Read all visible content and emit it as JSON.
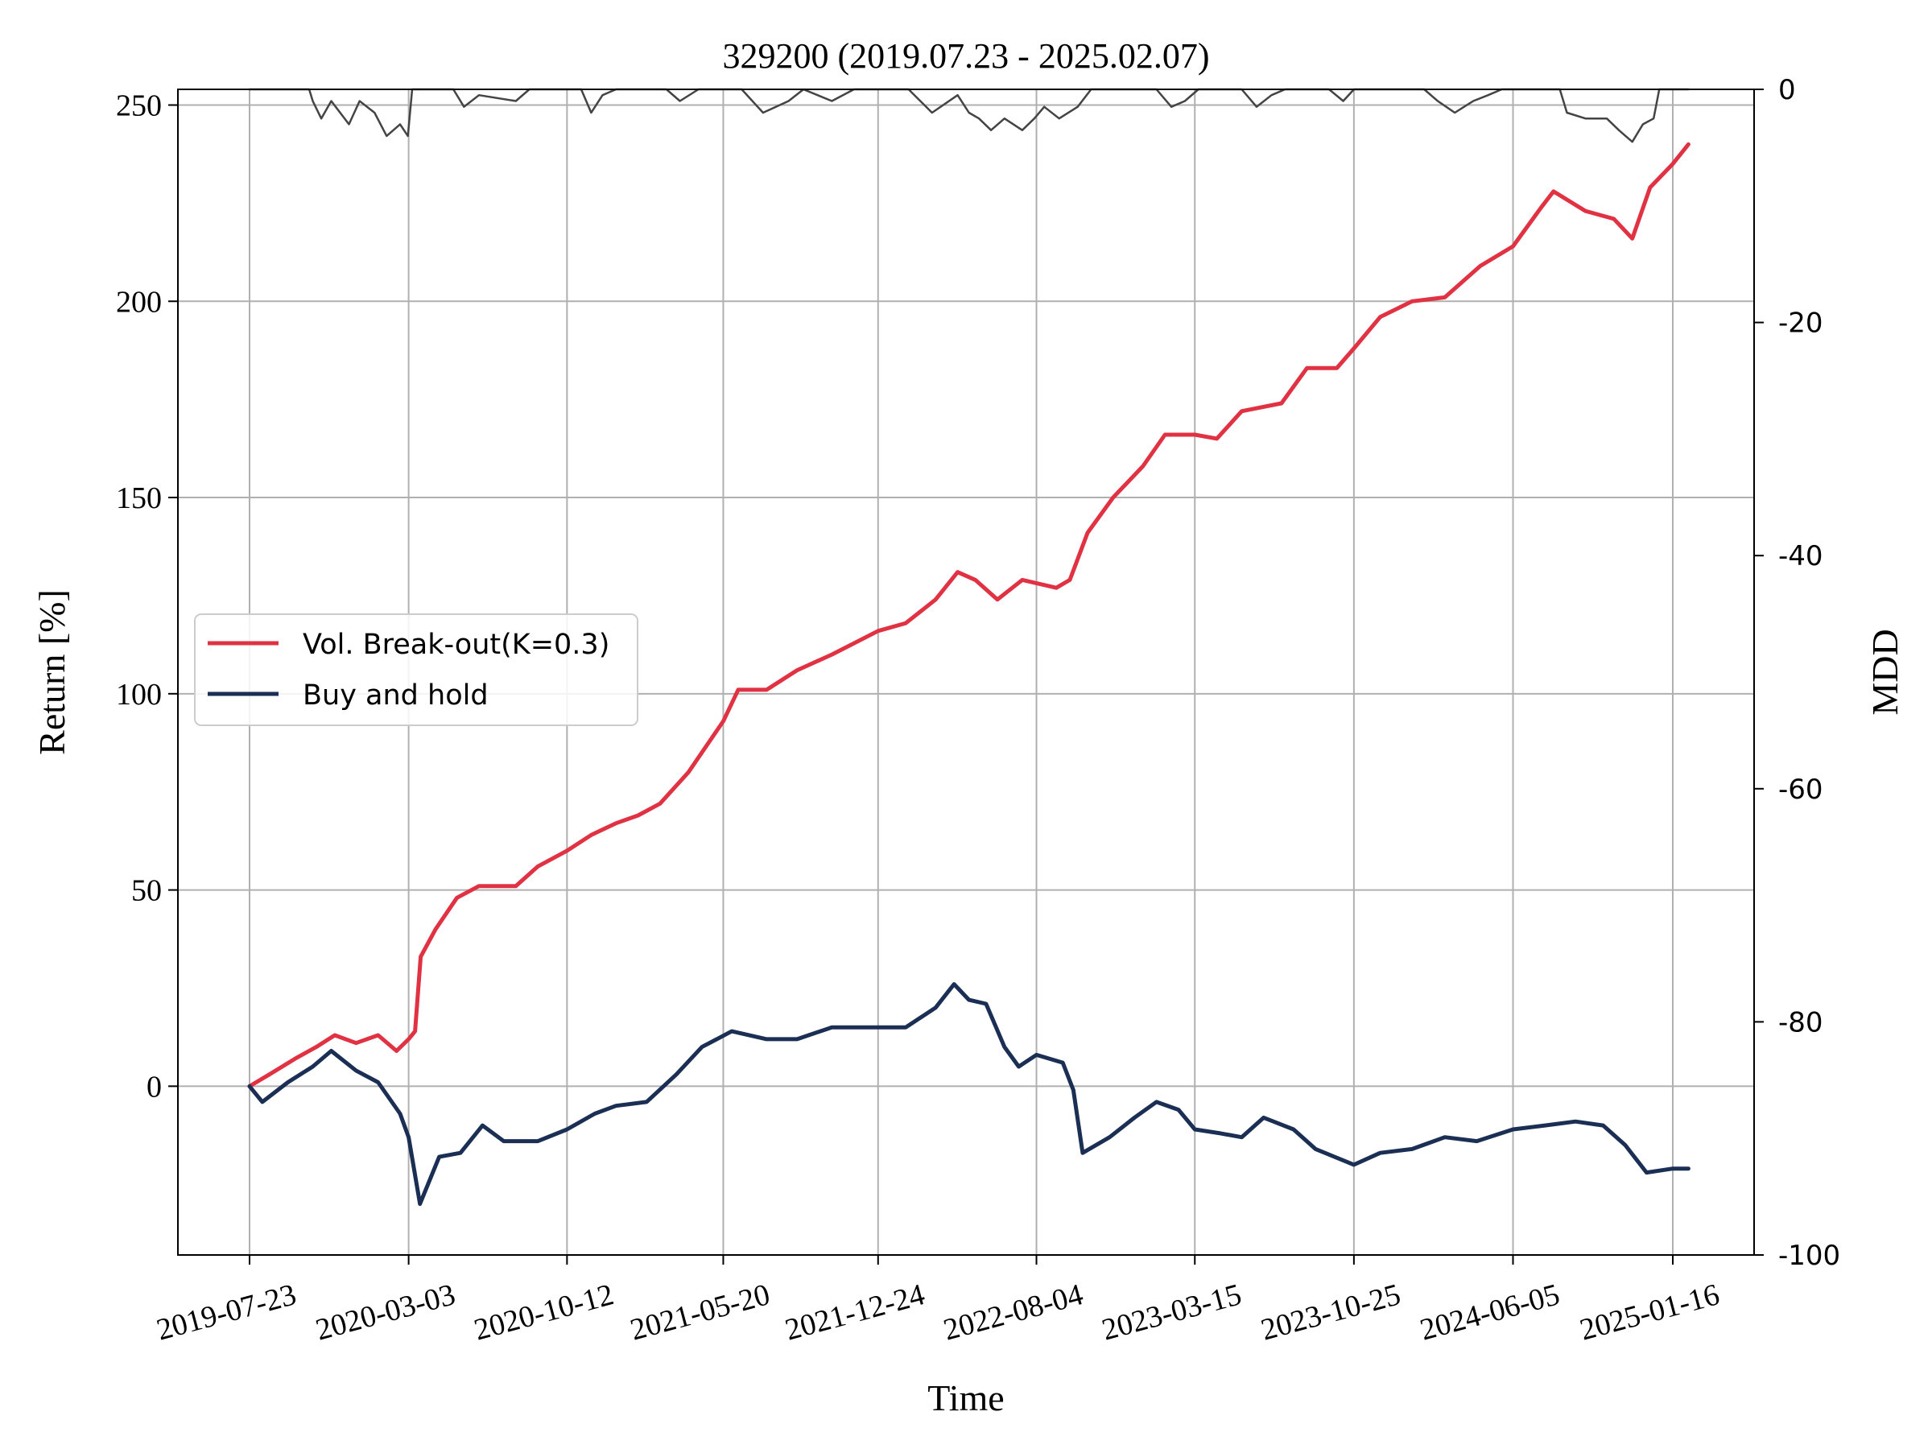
{
  "chart_data": {
    "type": "line",
    "title": "329200 (2019.07.23 - 2025.02.07)",
    "xlabel": "Time",
    "ylabel": "Return [%]",
    "ylabel_right": "MDD",
    "ylim": [
      -43,
      254
    ],
    "ylim_right": [
      -100,
      0
    ],
    "yticks_left": [
      "0",
      "50",
      "100",
      "150",
      "200",
      "250"
    ],
    "yticks_right": [
      "0",
      "-20",
      "-40",
      "-60",
      "-80",
      "-100"
    ],
    "xticks": [
      "2019-07-23",
      "2020-03-03",
      "2020-10-12",
      "2021-05-20",
      "2021-12-24",
      "2022-08-04",
      "2023-03-15",
      "2023-10-25",
      "2024-06-05",
      "2025-01-16"
    ],
    "grid": true,
    "legend_position": "center-left",
    "series": [
      {
        "name": "Vol. Break-out(K=0.3)",
        "color": "#e03242",
        "axis": "left",
        "points": [
          [
            "2019-07-23",
            0
          ],
          [
            "2019-08-20",
            3
          ],
          [
            "2019-09-25",
            7
          ],
          [
            "2019-10-25",
            10
          ],
          [
            "2019-11-20",
            13
          ],
          [
            "2019-12-20",
            11
          ],
          [
            "2020-01-20",
            13
          ],
          [
            "2020-02-15",
            9
          ],
          [
            "2020-03-03",
            12
          ],
          [
            "2020-03-12",
            14
          ],
          [
            "2020-03-20",
            33
          ],
          [
            "2020-04-10",
            40
          ],
          [
            "2020-05-10",
            48
          ],
          [
            "2020-06-10",
            51
          ],
          [
            "2020-08-01",
            51
          ],
          [
            "2020-09-01",
            56
          ],
          [
            "2020-10-12",
            60
          ],
          [
            "2020-11-15",
            64
          ],
          [
            "2020-12-20",
            67
          ],
          [
            "2021-01-20",
            69
          ],
          [
            "2021-02-20",
            72
          ],
          [
            "2021-04-01",
            80
          ],
          [
            "2021-05-20",
            93
          ],
          [
            "2021-06-10",
            101
          ],
          [
            "2021-07-20",
            101
          ],
          [
            "2021-09-01",
            106
          ],
          [
            "2021-10-20",
            110
          ],
          [
            "2021-12-24",
            116
          ],
          [
            "2022-02-01",
            118
          ],
          [
            "2022-03-15",
            124
          ],
          [
            "2022-04-15",
            131
          ],
          [
            "2022-05-10",
            129
          ],
          [
            "2022-06-10",
            124
          ],
          [
            "2022-07-15",
            129
          ],
          [
            "2022-09-01",
            127
          ],
          [
            "2022-09-20",
            129
          ],
          [
            "2022-10-15",
            141
          ],
          [
            "2022-11-20",
            150
          ],
          [
            "2023-01-01",
            158
          ],
          [
            "2023-02-01",
            166
          ],
          [
            "2023-03-15",
            166
          ],
          [
            "2023-04-15",
            165
          ],
          [
            "2023-05-20",
            172
          ],
          [
            "2023-07-15",
            174
          ],
          [
            "2023-08-20",
            183
          ],
          [
            "2023-10-01",
            183
          ],
          [
            "2023-10-25",
            188
          ],
          [
            "2023-12-01",
            196
          ],
          [
            "2024-01-15",
            200
          ],
          [
            "2024-03-01",
            201
          ],
          [
            "2024-04-20",
            209
          ],
          [
            "2024-06-05",
            214
          ],
          [
            "2024-07-15",
            224
          ],
          [
            "2024-08-01",
            228
          ],
          [
            "2024-09-15",
            223
          ],
          [
            "2024-10-25",
            221
          ],
          [
            "2024-11-20",
            216
          ],
          [
            "2024-12-15",
            229
          ],
          [
            "2025-01-16",
            235
          ],
          [
            "2025-02-07",
            240
          ]
        ]
      },
      {
        "name": "Buy and hold",
        "color": "#1b2f55",
        "axis": "left",
        "points": [
          [
            "2019-07-23",
            0
          ],
          [
            "2019-08-10",
            -4
          ],
          [
            "2019-09-15",
            1
          ],
          [
            "2019-10-20",
            5
          ],
          [
            "2019-11-15",
            9
          ],
          [
            "2019-12-20",
            4
          ],
          [
            "2020-01-20",
            1
          ],
          [
            "2020-02-20",
            -7
          ],
          [
            "2020-03-03",
            -13
          ],
          [
            "2020-03-19",
            -30
          ],
          [
            "2020-04-15",
            -18
          ],
          [
            "2020-05-15",
            -17
          ],
          [
            "2020-06-15",
            -10
          ],
          [
            "2020-07-15",
            -14
          ],
          [
            "2020-09-01",
            -14
          ],
          [
            "2020-10-12",
            -11
          ],
          [
            "2020-11-20",
            -7
          ],
          [
            "2020-12-20",
            -5
          ],
          [
            "2021-02-01",
            -4
          ],
          [
            "2021-03-15",
            3
          ],
          [
            "2021-04-20",
            10
          ],
          [
            "2021-06-01",
            14
          ],
          [
            "2021-07-20",
            12
          ],
          [
            "2021-09-01",
            12
          ],
          [
            "2021-10-20",
            15
          ],
          [
            "2021-12-24",
            15
          ],
          [
            "2022-02-01",
            15
          ],
          [
            "2022-03-15",
            20
          ],
          [
            "2022-04-10",
            26
          ],
          [
            "2022-05-01",
            22
          ],
          [
            "2022-05-25",
            21
          ],
          [
            "2022-06-20",
            10
          ],
          [
            "2022-07-10",
            5
          ],
          [
            "2022-08-04",
            8
          ],
          [
            "2022-09-10",
            6
          ],
          [
            "2022-09-25",
            -1
          ],
          [
            "2022-10-08",
            -17
          ],
          [
            "2022-11-15",
            -13
          ],
          [
            "2022-12-20",
            -8
          ],
          [
            "2023-01-20",
            -4
          ],
          [
            "2023-02-20",
            -6
          ],
          [
            "2023-03-15",
            -11
          ],
          [
            "2023-04-20",
            -12
          ],
          [
            "2023-05-20",
            -13
          ],
          [
            "2023-06-20",
            -8
          ],
          [
            "2023-08-01",
            -11
          ],
          [
            "2023-09-01",
            -16
          ],
          [
            "2023-10-25",
            -20
          ],
          [
            "2023-12-01",
            -17
          ],
          [
            "2024-01-15",
            -16
          ],
          [
            "2024-03-01",
            -13
          ],
          [
            "2024-04-15",
            -14
          ],
          [
            "2024-06-05",
            -11
          ],
          [
            "2024-07-20",
            -10
          ],
          [
            "2024-09-01",
            -9
          ],
          [
            "2024-10-10",
            -10
          ],
          [
            "2024-11-10",
            -15
          ],
          [
            "2024-12-10",
            -22
          ],
          [
            "2025-01-16",
            -21
          ],
          [
            "2025-02-07",
            -21
          ]
        ]
      },
      {
        "name": "MDD",
        "color": "#444444",
        "axis": "right",
        "points": [
          [
            "2019-07-23",
            0
          ],
          [
            "2019-10-15",
            0
          ],
          [
            "2019-10-20",
            -1
          ],
          [
            "2019-11-01",
            -2.5
          ],
          [
            "2019-11-15",
            -1
          ],
          [
            "2019-12-10",
            -3
          ],
          [
            "2019-12-25",
            -1
          ],
          [
            "2020-01-15",
            -2
          ],
          [
            "2020-02-01",
            -4
          ],
          [
            "2020-02-20",
            -3
          ],
          [
            "2020-03-02",
            -4
          ],
          [
            "2020-03-08",
            0
          ],
          [
            "2020-05-05",
            0
          ],
          [
            "2020-05-20",
            -1.5
          ],
          [
            "2020-06-10",
            -0.5
          ],
          [
            "2020-08-01",
            -1
          ],
          [
            "2020-08-20",
            0
          ],
          [
            "2020-11-01",
            0
          ],
          [
            "2020-11-15",
            -2
          ],
          [
            "2020-12-01",
            -0.5
          ],
          [
            "2020-12-20",
            0
          ],
          [
            "2021-03-01",
            0
          ],
          [
            "2021-03-20",
            -1
          ],
          [
            "2021-04-15",
            0
          ],
          [
            "2021-06-15",
            0
          ],
          [
            "2021-07-15",
            -2
          ],
          [
            "2021-08-20",
            -1
          ],
          [
            "2021-09-10",
            0
          ],
          [
            "2021-10-20",
            -1
          ],
          [
            "2021-11-20",
            0
          ],
          [
            "2022-02-05",
            0
          ],
          [
            "2022-03-10",
            -2
          ],
          [
            "2022-04-15",
            -0.5
          ],
          [
            "2022-05-01",
            -2
          ],
          [
            "2022-05-15",
            -2.5
          ],
          [
            "2022-06-01",
            -3.5
          ],
          [
            "2022-06-20",
            -2.5
          ],
          [
            "2022-07-15",
            -3.5
          ],
          [
            "2022-08-01",
            -2.5
          ],
          [
            "2022-08-15",
            -1.5
          ],
          [
            "2022-09-05",
            -2.5
          ],
          [
            "2022-10-01",
            -1.5
          ],
          [
            "2022-10-20",
            0
          ],
          [
            "2023-01-20",
            0
          ],
          [
            "2023-02-10",
            -1.5
          ],
          [
            "2023-03-01",
            -1
          ],
          [
            "2023-03-20",
            0
          ],
          [
            "2023-05-20",
            0
          ],
          [
            "2023-06-10",
            -1.5
          ],
          [
            "2023-07-01",
            -0.5
          ],
          [
            "2023-07-20",
            0
          ],
          [
            "2023-09-20",
            0
          ],
          [
            "2023-10-10",
            -1
          ],
          [
            "2023-10-25",
            0
          ],
          [
            "2024-02-01",
            0
          ],
          [
            "2024-02-20",
            -1
          ],
          [
            "2024-03-15",
            -2
          ],
          [
            "2024-04-10",
            -1
          ],
          [
            "2024-05-01",
            -0.5
          ],
          [
            "2024-05-20",
            0
          ],
          [
            "2024-08-10",
            0
          ],
          [
            "2024-08-20",
            -2
          ],
          [
            "2024-09-15",
            -2.5
          ],
          [
            "2024-10-15",
            -2.5
          ],
          [
            "2024-11-01",
            -3.5
          ],
          [
            "2024-11-20",
            -4.5
          ],
          [
            "2024-12-05",
            -3
          ],
          [
            "2024-12-20",
            -2.5
          ],
          [
            "2024-12-28",
            0
          ],
          [
            "2025-02-07",
            0
          ]
        ]
      }
    ]
  }
}
